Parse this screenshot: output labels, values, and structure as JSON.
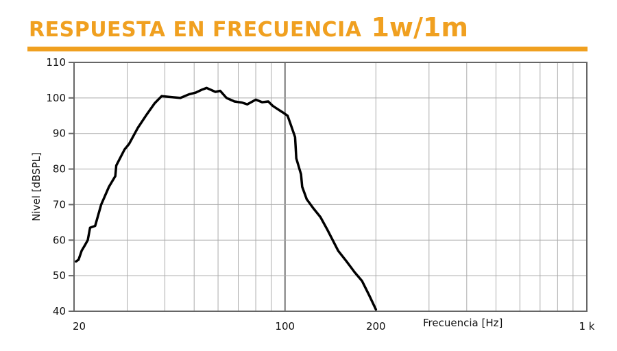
{
  "header": {
    "title": "RESPUESTA EN FRECUENCIA",
    "subtitle": "1w/1m",
    "accent_color": "#f0a020"
  },
  "chart_data": {
    "type": "line",
    "title": "RESPUESTA EN FRECUENCIA 1w/1m",
    "xlabel": "Frecuencia [Hz]",
    "ylabel": "Nivel [dBSPL]",
    "x_scale": "log",
    "xlim": [
      20,
      1000
    ],
    "ylim": [
      40,
      110
    ],
    "grid": true,
    "x_ticks": [
      {
        "value": 20,
        "label": "20"
      },
      {
        "value": 100,
        "label": "100"
      },
      {
        "value": 200,
        "label": "200"
      },
      {
        "value": 1000,
        "label": "1 k"
      }
    ],
    "y_ticks": [
      {
        "value": 40,
        "label": "40"
      },
      {
        "value": 50,
        "label": "50"
      },
      {
        "value": 60,
        "label": "60"
      },
      {
        "value": 70,
        "label": "70"
      },
      {
        "value": 80,
        "label": "80"
      },
      {
        "value": 90,
        "label": "90"
      },
      {
        "value": 100,
        "label": "100"
      },
      {
        "value": 110,
        "label": "110"
      }
    ],
    "line_color": "#000000",
    "series": [
      {
        "x": [
          20.3,
          20.7,
          21.2,
          21.7,
          22.2,
          22.6,
          23.5,
          24.6,
          26.1,
          27.4,
          27.6,
          29.4,
          30.4,
          32.5,
          34.6,
          37.0,
          39.0,
          45.0,
          48.0,
          50.6,
          53.0,
          55.0,
          58.8,
          61.0,
          64.0,
          68.0,
          72.0,
          75.0,
          80.0,
          84.0,
          88.0,
          91.0,
          94.0,
          98.0,
          102.0,
          104.0,
          108.0,
          109.0,
          113.0,
          114.0,
          118.0,
          124.0,
          131.0,
          138.0,
          150.0,
          160.0,
          170.0,
          180.0,
          190.0,
          200.0
        ],
        "y": [
          54,
          54.5,
          57,
          58.5,
          60,
          63.5,
          64,
          70,
          75,
          78,
          81,
          85.5,
          87,
          91.5,
          95,
          98.5,
          100.5,
          100,
          101,
          101.5,
          102.3,
          102.8,
          101.7,
          102,
          100,
          99,
          98.7,
          98.2,
          99.5,
          98.8,
          99,
          97.8,
          97,
          96,
          95,
          93,
          89,
          83,
          78.5,
          75,
          71.5,
          69,
          66.5,
          63,
          57,
          54,
          51,
          48.5,
          44.5,
          40.5
        ]
      }
    ]
  }
}
